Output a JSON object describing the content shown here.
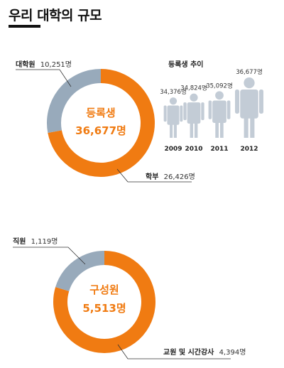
{
  "page": {
    "title": "우리 대학의 규모"
  },
  "colors": {
    "orange": "#f07b12",
    "blue_gray": "#98aabb",
    "person": "#c3ccd6"
  },
  "chart_data": [
    {
      "type": "pie",
      "variant": "donut",
      "center_label": "등록생",
      "center_value": "36,677명",
      "slices": [
        {
          "name": "학부",
          "value_label": "26,426명",
          "value": 26426,
          "color": "#f07b12"
        },
        {
          "name": "대학원",
          "value_label": "10,251명",
          "value": 10251,
          "color": "#98aabb"
        }
      ]
    },
    {
      "type": "bar",
      "variant": "pictogram",
      "title": "등록생 추이",
      "categories": [
        "2009",
        "2010",
        "2011",
        "2012"
      ],
      "value_labels": [
        "34,376명",
        "34,824명",
        "35,092명",
        "36,677명"
      ],
      "values": [
        34376,
        34824,
        35092,
        36677
      ]
    },
    {
      "type": "pie",
      "variant": "donut",
      "center_label": "구성원",
      "center_value": "5,513명",
      "slices": [
        {
          "name": "교원 및 시간강사",
          "value_label": "4,394명",
          "value": 4394,
          "color": "#f07b12"
        },
        {
          "name": "직원",
          "value_label": "1,119명",
          "value": 1119,
          "color": "#98aabb"
        }
      ]
    }
  ]
}
